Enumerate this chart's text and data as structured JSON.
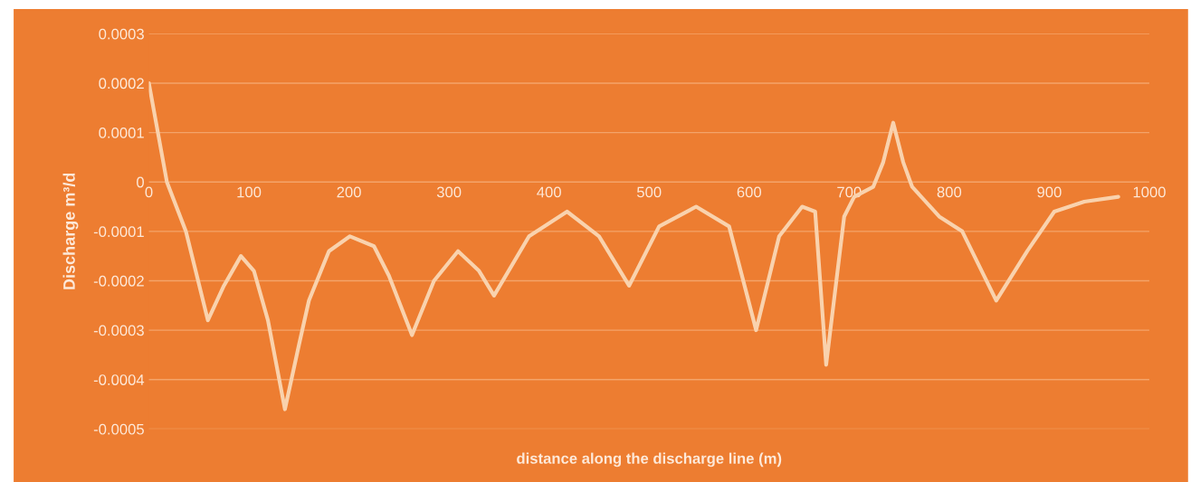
{
  "chart_data": {
    "type": "line",
    "title": null,
    "xlabel": "distance along the discharge line (m)",
    "ylabel": "Discharge m³/d",
    "series": [
      {
        "color": "#f9d2ad",
        "x": [
          0,
          18,
          37,
          59,
          75,
          92,
          105,
          119,
          136,
          150,
          160,
          180,
          201,
          225,
          240,
          263,
          285,
          309,
          330,
          345,
          380,
          418,
          450,
          480,
          510,
          547,
          580,
          607,
          630,
          653,
          666,
          677,
          695,
          705,
          724,
          734,
          744,
          754,
          763,
          790,
          813,
          847,
          878,
          905,
          935,
          969
        ],
        "values": [
          0.0002,
          0,
          -0.0001,
          -0.00028,
          -0.00021,
          -0.00015,
          -0.00018,
          -0.00028,
          -0.00046,
          -0.00033,
          -0.00024,
          -0.00014,
          -0.00011,
          -0.00013,
          -0.00019,
          -0.00031,
          -0.0002,
          -0.00014,
          -0.00018,
          -0.00023,
          -0.00011,
          -6e-05,
          -0.00011,
          -0.00021,
          -9e-05,
          -5e-05,
          -9e-05,
          -0.0003,
          -0.00011,
          -5e-05,
          -6e-05,
          -0.00037,
          -7e-05,
          -3e-05,
          -1e-05,
          4e-05,
          0.00012,
          4e-05,
          -1e-05,
          -7e-05,
          -0.0001,
          -0.00024,
          -0.00014,
          -6e-05,
          -4e-05,
          -3e-05
        ]
      }
    ],
    "xlim": [
      0,
      1000
    ],
    "xticks": [
      0,
      100,
      200,
      300,
      400,
      500,
      600,
      700,
      800,
      900,
      1000
    ],
    "ylim": [
      -0.0005,
      0.0003
    ],
    "yticks": [
      -0.0005,
      -0.0004,
      -0.0003,
      -0.0002,
      -0.0001,
      0,
      0.0001,
      0.0002,
      0.0003
    ],
    "grid": "y",
    "legend": false,
    "marker": "none",
    "line_style": "solid"
  }
}
